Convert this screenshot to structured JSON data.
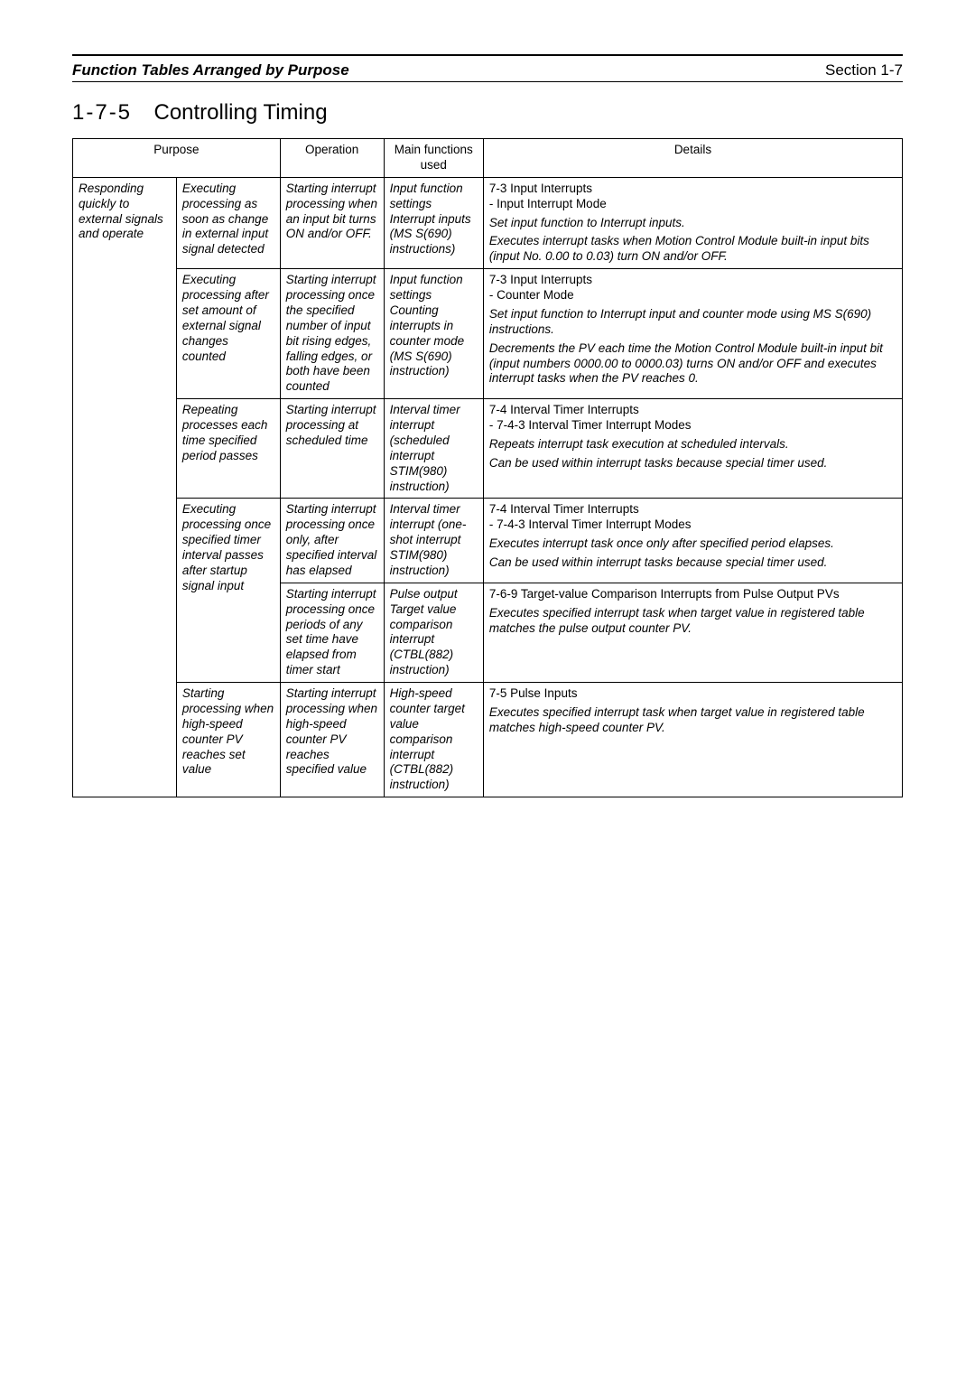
{
  "header": {
    "left": "Function Tables Arranged by Purpose",
    "right": "Section 1-7"
  },
  "section": {
    "number": "1-7-5",
    "title": "Controlling Timing"
  },
  "columns": {
    "purpose": "Purpose",
    "operation": "Operation",
    "functions": "Main functions used",
    "details": "Details"
  },
  "rowspan_purpose": "Responding quickly to external signals and operate",
  "rows": [
    {
      "sub": "Executing processing as soon as change in external input signal detected",
      "op": "Starting interrupt processing when an input bit turns ON and/or OFF.",
      "fn": "Input function settings\nInterrupt inputs (MS  S(690) instructions)",
      "d1": "7-3 Input Interrupts\n- Input Interrupt Mode",
      "d2": "Set input function to Interrupt inputs.",
      "d3": "Executes interrupt tasks when Motion Control Module built-in input bits (input No. 0.00 to 0.03) turn ON and/or OFF."
    },
    {
      "sub": "Executing processing after set amount of external signal changes counted",
      "op": "Starting interrupt processing once the specified number of input bit rising edges, falling edges, or both have been counted",
      "fn": "Input function settings\nCounting interrupts in counter mode (MS  S(690) instruction)",
      "d1": "7-3 Input Interrupts\n- Counter Mode",
      "d2": "Set input function to Interrupt input and counter mode using MS  S(690) instructions.",
      "d3": "Decrements the PV each time the Motion Control Module built-in input bit (input numbers 0000.00 to 0000.03) turns ON and/or OFF and executes interrupt tasks when the PV reaches 0."
    },
    {
      "sub": "Repeating processes each time specified period passes",
      "op": "Starting interrupt processing at scheduled time",
      "fn": "Interval timer interrupt (scheduled interrupt STIM(980) instruction)",
      "d1": "7-4 Interval Timer Interrupts\n- 7-4-3 Interval Timer Interrupt Modes",
      "d2": "Repeats interrupt task execution at scheduled intervals.",
      "d3": "Can be used within interrupt tasks because special timer used."
    },
    {
      "sub": "Executing processing once specified timer interval passes after startup signal input",
      "op": "Starting interrupt processing once only, after specified interval has elapsed",
      "fn": "Interval timer interrupt (one-shot interrupt STIM(980) instruction)",
      "d1": "7-4 Interval Timer Interrupts\n- 7-4-3 Interval Timer Interrupt Modes",
      "d2": "Executes interrupt task once only after specified period elapses.",
      "d3": "Can be used within interrupt tasks because special timer used."
    },
    {
      "sub_skip": true,
      "op": "Starting interrupt processing once periods of any set time have elapsed from timer start",
      "fn": "Pulse output\nTarget value comparison interrupt (CTBL(882) instruction)",
      "d1": "7-6-9 Target-value Comparison Interrupts from Pulse Output PVs",
      "d2": "Executes specified interrupt task when target value in registered table matches the pulse output counter PV."
    },
    {
      "sub": "Starting processing when high-speed counter PV reaches set value",
      "op": "Starting interrupt processing when high-speed counter PV reaches specified value",
      "fn": "High-speed counter target value comparison interrupt (CTBL(882) instruction)",
      "d1": "7-5 Pulse Inputs",
      "d2": "Executes specified interrupt task when target value in registered table matches high-speed counter PV."
    }
  ]
}
